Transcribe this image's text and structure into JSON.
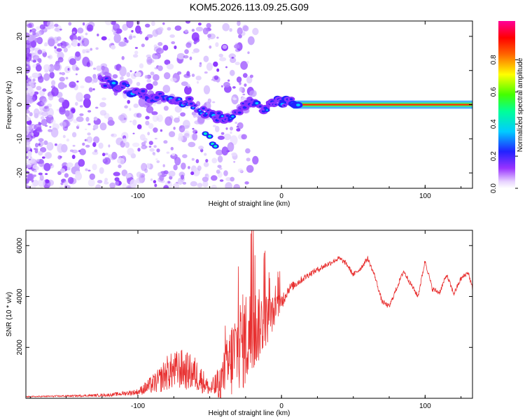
{
  "title": "KOM5.2026.113.09.25.G09",
  "colors": {
    "snr_line": "#e83030",
    "ridge": "#ff2020",
    "background": "#ffffff",
    "axis": "#000000"
  },
  "chart_data": [
    {
      "type": "heatmap",
      "name": "spectrogram",
      "xlabel": "Height of straight line (km)",
      "ylabel": "Frequency (Hz)",
      "xlim": [
        -178,
        133
      ],
      "ylim": [
        -24.5,
        24.5
      ],
      "x_ticks": [
        -100,
        0,
        100
      ],
      "y_ticks": [
        -20,
        -10,
        0,
        10,
        20
      ],
      "colorbar": {
        "label": "Normalized spectral amplitude",
        "range": [
          0.0,
          1.0
        ],
        "ticks": [
          "0.0",
          "0.2",
          "0.4",
          "0.6",
          "0.8"
        ],
        "colormap": "rainbow (white-violet-blue-cyan-green-yellow-red-magenta)"
      },
      "ridge": {
        "x": [
          -122,
          -110,
          -98,
          -88,
          -80,
          -72,
          -64,
          -56,
          -48,
          -42,
          -36,
          -30,
          -24,
          -18,
          -12,
          -6,
          0,
          10,
          30,
          60,
          100,
          133
        ],
        "y": [
          6.5,
          5,
          3,
          2,
          2.5,
          1.5,
          0.5,
          -1.5,
          -3,
          -4,
          -4.5,
          -2,
          0,
          0.5,
          -1,
          0.5,
          1,
          0.2,
          0,
          0,
          0,
          0
        ]
      }
    },
    {
      "type": "line",
      "name": "snr",
      "xlabel": "Height of straight line (km)",
      "ylabel": "SNR (10 * v/v)",
      "xlim": [
        -178,
        133
      ],
      "ylim": [
        0,
        6600
      ],
      "x_ticks": [
        -100,
        0,
        100
      ],
      "y_ticks": [
        2000,
        4000,
        6000
      ],
      "series": [
        {
          "name": "SNR",
          "x": [
            -178,
            -160,
            -140,
            -120,
            -100,
            -85,
            -80,
            -70,
            -60,
            -55,
            -50,
            -45,
            -40,
            -35,
            -30,
            -25,
            -20,
            -15,
            -10,
            -5,
            0,
            5,
            10,
            20,
            30,
            40,
            45,
            50,
            55,
            60,
            65,
            70,
            75,
            80,
            85,
            90,
            95,
            100,
            105,
            110,
            115,
            120,
            125,
            130,
            133
          ],
          "values": [
            60,
            80,
            100,
            130,
            250,
            700,
            1000,
            1150,
            950,
            700,
            350,
            500,
            900,
            1500,
            2100,
            2300,
            2600,
            2900,
            3100,
            3400,
            3800,
            4300,
            4500,
            4900,
            5200,
            5500,
            5300,
            4850,
            5100,
            5500,
            4800,
            3800,
            3600,
            4300,
            5000,
            4500,
            4000,
            5400,
            4300,
            4150,
            4850,
            4100,
            4700,
            4950,
            4300
          ],
          "noise": [
            20,
            30,
            40,
            60,
            120,
            500,
            700,
            800,
            700,
            500,
            250,
            600,
            1000,
            1600,
            1800,
            2000,
            1800,
            1400,
            1000,
            600,
            350,
            200,
            160,
            120,
            110,
            100,
            100,
            100,
            100,
            100,
            100,
            100,
            100,
            100,
            100,
            100,
            100,
            100,
            100,
            100,
            100,
            100,
            100,
            100,
            100
          ]
        }
      ]
    }
  ]
}
